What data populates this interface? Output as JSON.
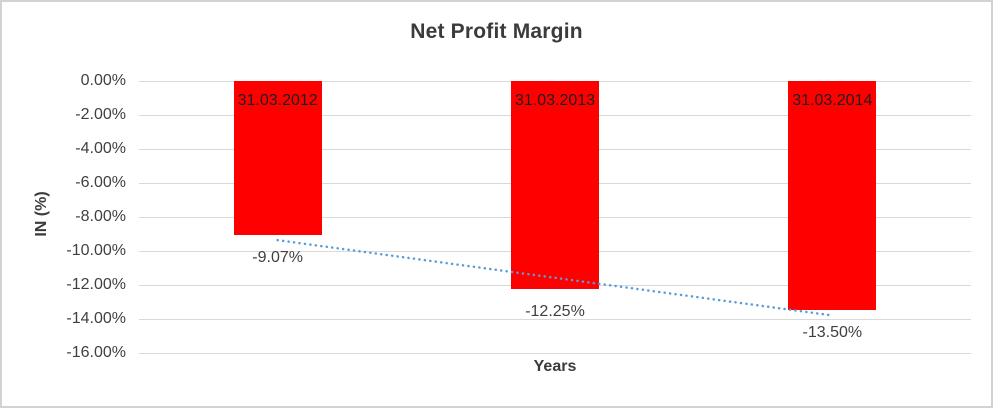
{
  "chart_data": {
    "type": "bar",
    "title": "Net Profit Margin",
    "xlabel": "Years",
    "ylabel": "IN (%)",
    "categories": [
      "31.03.2012",
      "31.03.2013",
      "31.03.2014"
    ],
    "values": [
      -9.07,
      -12.25,
      -13.5
    ],
    "value_labels": [
      "-9.07%",
      "-12.25%",
      "-13.50%"
    ],
    "y_ticks": [
      "0.00%",
      "-2.00%",
      "-4.00%",
      "-6.00%",
      "-8.00%",
      "-10.00%",
      "-12.00%",
      "-14.00%",
      "-16.00%"
    ],
    "y_tick_values": [
      0,
      -2,
      -4,
      -6,
      -8,
      -10,
      -12,
      -14,
      -16
    ],
    "ylim": [
      -16,
      0
    ],
    "grid": true,
    "legend": "none",
    "bar_color": "#ff0000",
    "category_label_position": "inside-end",
    "value_label_position": "outside-end",
    "trendline": {
      "type": "linear",
      "style": "dotted",
      "color": "#5b9bd5"
    }
  }
}
